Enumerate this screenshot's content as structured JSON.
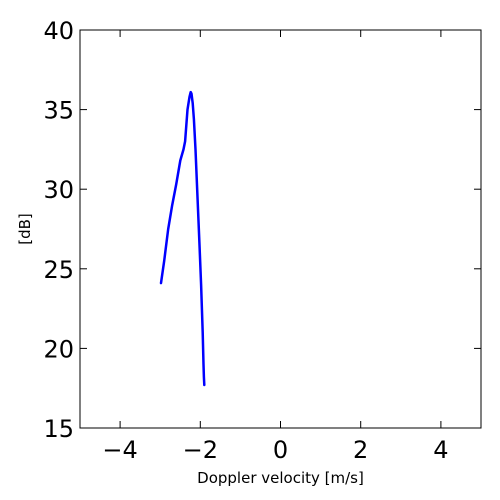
{
  "chart_data": {
    "type": "line",
    "title": "",
    "xlabel": "Doppler velocity [m/s]",
    "ylabel": "[dB]",
    "xlim": [
      -5,
      5
    ],
    "ylim": [
      15,
      40
    ],
    "grid": false,
    "xticks": [
      -4,
      -2,
      0,
      2,
      4
    ],
    "xtick_labels": [
      "−4",
      "−2",
      "0",
      "2",
      "4"
    ],
    "yticks": [
      15,
      20,
      25,
      30,
      35,
      40
    ],
    "ytick_labels": [
      "15",
      "20",
      "25",
      "30",
      "35",
      "40"
    ],
    "series": [
      {
        "color": "#0000ff",
        "x": [
          -2.98,
          -2.9,
          -2.8,
          -2.7,
          -2.6,
          -2.5,
          -2.42,
          -2.38,
          -2.32,
          -2.27,
          -2.24,
          -2.22,
          -2.19,
          -2.16,
          -2.12,
          -2.07,
          -2.02,
          -1.98,
          -1.94,
          -1.92,
          -1.91,
          -1.9
        ],
        "y": [
          24.1,
          25.5,
          27.5,
          29.0,
          30.3,
          31.8,
          32.5,
          33.0,
          35.0,
          35.8,
          36.1,
          36.0,
          35.4,
          34.4,
          32.5,
          29.5,
          26.5,
          24.0,
          21.0,
          19.0,
          18.2,
          17.7
        ]
      }
    ]
  }
}
